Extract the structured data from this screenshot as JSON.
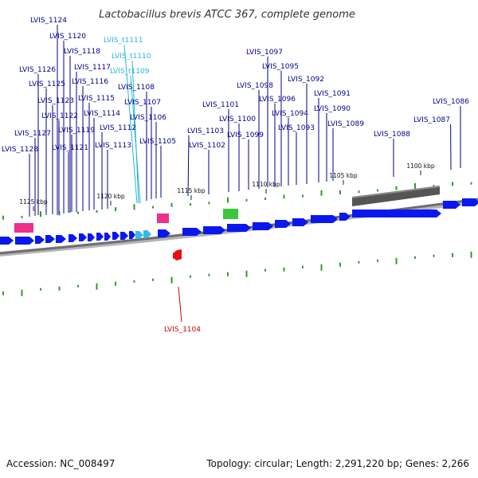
{
  "title": "Lactobacillus brevis ATCC 367, complete genome",
  "accession_text": "Accession: NC_008497",
  "summary_text": "Topology: circular; Length: 2,291,220 bp; Genes: 2,266",
  "colors": {
    "cds": "#0a18ee",
    "trna": "#37b9e6",
    "trna_label": "#27b5de",
    "rrna": "#ee2f8c",
    "misc": "#39c83a",
    "reverse_gene": "#e81010",
    "reverse_label": "#cc0000",
    "feature_label": "#00008b",
    "gc_tick": "#2f9a2f",
    "backbone": "#808080",
    "region_bar": "#555555"
  },
  "position_ticks": [
    "1125 kbp",
    "1120 kbp",
    "1115 kbp",
    "1110 kbp",
    "1105 kbp",
    "1100 kbp"
  ],
  "forward_labels": [
    "LVIS_1124",
    "LVIS_1120",
    "LVIS_1118",
    "LVIS_1117",
    "LVIS_1126",
    "LVIS_1116",
    "LVIS_1125",
    "LVIS_1115",
    "LVIS_1123",
    "LVIS_1122",
    "LVIS_1114",
    "LVIS_1119",
    "LVIS_1112",
    "LVIS_1127",
    "LVIS_1121",
    "LVIS_1113",
    "LVIS_1128",
    "LVIS_1108",
    "LVIS_1107",
    "LVIS_1106",
    "LVIS_1105",
    "LVIS_1103",
    "LVIS_1102",
    "LVIS_1101",
    "LVIS_1100",
    "LVIS_1099",
    "LVIS_1098",
    "LVIS_1097",
    "LVIS_1096",
    "LVIS_1095",
    "LVIS_1094",
    "LVIS_1093",
    "LVIS_1092",
    "LVIS_1091",
    "LVIS_1090",
    "LVIS_1089",
    "LVIS_1088",
    "LVIS_1087",
    "LVIS_1086"
  ],
  "trna_labels": [
    "LVIS_t1111",
    "LVIS_t1110",
    "LVIS_t1109"
  ],
  "reverse_labels": [
    "LVIS_1104"
  ]
}
